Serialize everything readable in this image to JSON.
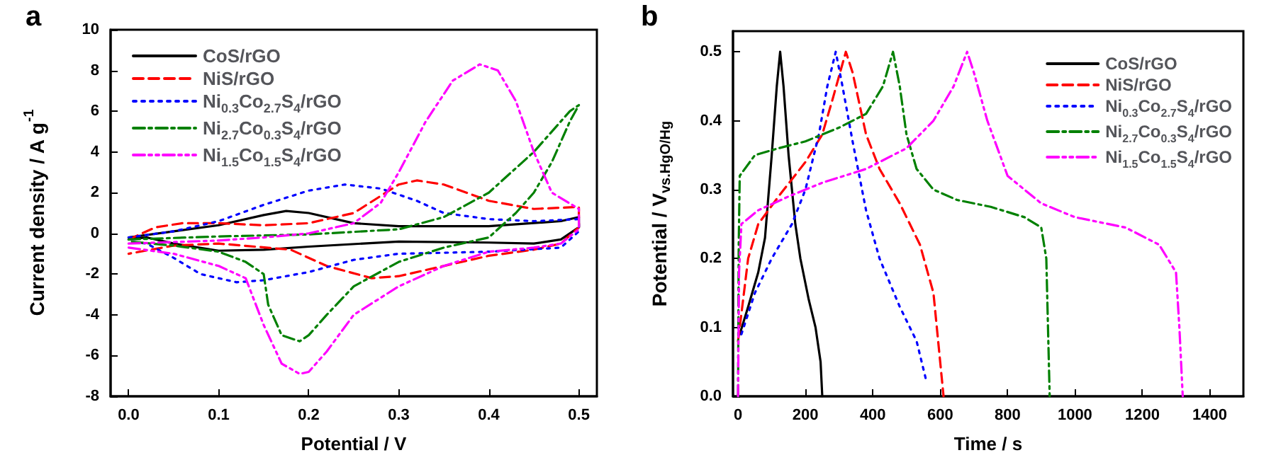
{
  "chart_data": [
    {
      "type": "line",
      "annotations": [
        "a"
      ],
      "xlabel": "Potential / V",
      "ylabel": "Current density / A g$^{-1}$",
      "xlim": [
        -0.02,
        0.52
      ],
      "ylim": [
        -8,
        10
      ],
      "xticks": [
        {
          "value": 0,
          "label": "0.0"
        },
        0.1,
        0.2,
        0.3,
        0.4,
        0.5
      ],
      "yticks": [
        -8,
        -6,
        -4,
        -2,
        0,
        2,
        4,
        6,
        8,
        10
      ],
      "legend": "top left",
      "marker": "none",
      "series": [
        {
          "name": "CoS/rGO",
          "color": "#000000",
          "line_style": "solid",
          "x": [
            0,
            0.05,
            0.1,
            0.15,
            0.175,
            0.2,
            0.25,
            0.3,
            0.4,
            0.48,
            0.5,
            0.5,
            0.48,
            0.45,
            0.4,
            0.3,
            0.2,
            0.15,
            0.1,
            0.05,
            0.02,
            0
          ],
          "values": [
            -0.2,
            0.1,
            0.4,
            0.9,
            1.1,
            1.0,
            0.5,
            0.35,
            0.35,
            0.6,
            0.8,
            0.3,
            -0.3,
            -0.5,
            -0.45,
            -0.4,
            -0.65,
            -0.8,
            -0.85,
            -0.5,
            -0.2,
            -0.3
          ]
        },
        {
          "name": "NiS/rGO",
          "color": "#ff0000",
          "line_style": "dashed",
          "x": [
            0,
            0.03,
            0.06,
            0.1,
            0.15,
            0.2,
            0.25,
            0.3,
            0.32,
            0.35,
            0.4,
            0.45,
            0.5,
            0.5,
            0.48,
            0.45,
            0.4,
            0.35,
            0.3,
            0.27,
            0.22,
            0.18,
            0.1,
            0.05,
            0
          ],
          "values": [
            -0.3,
            0.3,
            0.5,
            0.5,
            0.4,
            0.5,
            1.0,
            2.4,
            2.6,
            2.4,
            1.6,
            1.2,
            1.3,
            0.3,
            -0.5,
            -0.8,
            -1.1,
            -1.6,
            -2.1,
            -2.2,
            -1.6,
            -0.8,
            -0.5,
            -0.6,
            -1.0
          ]
        },
        {
          "name": "Ni$_{0.3}$Co$_{2.7}$S$_{4}$/rGO",
          "color": "#0000ff",
          "line_style": "dotted",
          "x": [
            0,
            0.05,
            0.1,
            0.15,
            0.2,
            0.24,
            0.28,
            0.32,
            0.35,
            0.4,
            0.45,
            0.5,
            0.5,
            0.48,
            0.4,
            0.3,
            0.25,
            0.2,
            0.15,
            0.12,
            0.08,
            0.05,
            0.02,
            0
          ],
          "values": [
            -0.2,
            0.1,
            0.6,
            1.4,
            2.1,
            2.4,
            2.2,
            1.6,
            1.0,
            0.7,
            0.6,
            0.7,
            0.1,
            -0.7,
            -0.9,
            -1.0,
            -1.3,
            -1.9,
            -2.3,
            -2.4,
            -2.0,
            -1.2,
            -0.5,
            -0.4
          ]
        },
        {
          "name": "Ni$_{2.7}$Co$_{0.3}$S$_{4}$/rGO",
          "color": "#008000",
          "line_style": "dashdot",
          "x": [
            0,
            0.1,
            0.2,
            0.3,
            0.35,
            0.4,
            0.45,
            0.49,
            0.5,
            0.49,
            0.47,
            0.45,
            0.43,
            0.4,
            0.35,
            0.3,
            0.25,
            0.22,
            0.2,
            0.19,
            0.17,
            0.155,
            0.15,
            0.13,
            0.1,
            0.05,
            0
          ],
          "values": [
            -0.3,
            -0.15,
            -0.05,
            0.2,
            0.8,
            2.0,
            4.0,
            6.0,
            6.3,
            5.5,
            3.5,
            2.0,
            1.0,
            -0.2,
            -0.7,
            -1.4,
            -2.6,
            -4.0,
            -5.0,
            -5.3,
            -5.0,
            -3.5,
            -2.0,
            -1.4,
            -0.9,
            -0.6,
            -0.4
          ]
        },
        {
          "name": "Ni$_{1.5}$Co$_{1.5}$S$_{4}$/rGO",
          "color": "#ff00ff",
          "line_style": "dashdotdot",
          "x": [
            0,
            0.1,
            0.15,
            0.2,
            0.25,
            0.28,
            0.3,
            0.33,
            0.36,
            0.39,
            0.41,
            0.43,
            0.45,
            0.47,
            0.5,
            0.5,
            0.48,
            0.45,
            0.4,
            0.35,
            0.3,
            0.25,
            0.22,
            0.2,
            0.19,
            0.17,
            0.15,
            0.13,
            0.1,
            0.05,
            0
          ],
          "values": [
            -0.5,
            -0.35,
            -0.2,
            0.0,
            0.5,
            1.5,
            3.0,
            5.5,
            7.5,
            8.3,
            8.0,
            6.5,
            4.0,
            2.0,
            1.2,
            0.2,
            -0.5,
            -0.7,
            -0.9,
            -1.6,
            -2.6,
            -4.0,
            -5.8,
            -6.8,
            -6.9,
            -6.4,
            -4.5,
            -2.2,
            -1.6,
            -1.0,
            -0.7
          ]
        }
      ]
    },
    {
      "type": "line",
      "annotations": [
        "b"
      ],
      "xlabel": "Time / s",
      "ylabel": "Potential / V$_{vs.HgO/Hg}$",
      "xlim": [
        -15,
        1500
      ],
      "ylim": [
        0,
        0.53
      ],
      "xticks": [
        0,
        200,
        400,
        600,
        800,
        1000,
        1200,
        1400
      ],
      "yticks": [
        {
          "value": 0,
          "label": "0.0"
        },
        0.1,
        0.2,
        0.3,
        0.4,
        0.5
      ],
      "legend": "right",
      "marker": "none",
      "series": [
        {
          "name": "CoS/rGO",
          "color": "#000000",
          "line_style": "solid",
          "x": [
            5,
            30,
            60,
            80,
            100,
            115,
            125,
            135,
            150,
            170,
            185,
            210,
            230,
            245,
            250
          ],
          "values": [
            0.09,
            0.13,
            0.18,
            0.23,
            0.35,
            0.45,
            0.5,
            0.45,
            0.35,
            0.25,
            0.2,
            0.14,
            0.1,
            0.05,
            0
          ]
        },
        {
          "name": "NiS/rGO",
          "color": "#ff0000",
          "line_style": "dashed",
          "x": [
            0,
            10,
            30,
            60,
            120,
            200,
            250,
            280,
            320,
            340,
            380,
            420,
            480,
            540,
            580,
            600,
            610
          ],
          "values": [
            0.08,
            0.12,
            0.2,
            0.25,
            0.29,
            0.34,
            0.38,
            0.43,
            0.5,
            0.47,
            0.38,
            0.33,
            0.28,
            0.22,
            0.15,
            0.05,
            0
          ]
        },
        {
          "name": "Ni$_{0.3}$Co$_{2.7}$S$_{4}$/rGO",
          "color": "#0000ff",
          "line_style": "dotted",
          "x": [
            10,
            50,
            100,
            160,
            200,
            240,
            265,
            290,
            310,
            340,
            380,
            420,
            480,
            530,
            560
          ],
          "values": [
            0.09,
            0.15,
            0.2,
            0.25,
            0.3,
            0.38,
            0.45,
            0.5,
            0.45,
            0.37,
            0.27,
            0.2,
            0.13,
            0.08,
            0.02
          ]
        },
        {
          "name": "Ni$_{2.7}$Co$_{0.3}$S$_{4}$/rGO",
          "color": "#008000",
          "line_style": "dashdot",
          "x": [
            0,
            2,
            5,
            50,
            120,
            200,
            300,
            380,
            430,
            460,
            480,
            500,
            530,
            580,
            650,
            750,
            850,
            900,
            915,
            920,
            925
          ],
          "values": [
            0,
            0.22,
            0.32,
            0.35,
            0.36,
            0.37,
            0.39,
            0.41,
            0.45,
            0.5,
            0.45,
            0.38,
            0.33,
            0.3,
            0.285,
            0.275,
            0.26,
            0.245,
            0.2,
            0.1,
            0
          ]
        },
        {
          "name": "Ni$_{1.5}$Co$_{1.5}$S$_{4}$/rGO",
          "color": "#ff00ff",
          "line_style": "dashdotdot",
          "x": [
            0,
            3,
            10,
            60,
            150,
            250,
            380,
            500,
            580,
            640,
            680,
            700,
            740,
            800,
            900,
            1000,
            1150,
            1250,
            1300,
            1310,
            1320
          ],
          "values": [
            0,
            0.18,
            0.25,
            0.27,
            0.29,
            0.31,
            0.33,
            0.36,
            0.4,
            0.45,
            0.5,
            0.47,
            0.4,
            0.32,
            0.28,
            0.26,
            0.245,
            0.22,
            0.18,
            0.1,
            0
          ]
        }
      ]
    }
  ]
}
